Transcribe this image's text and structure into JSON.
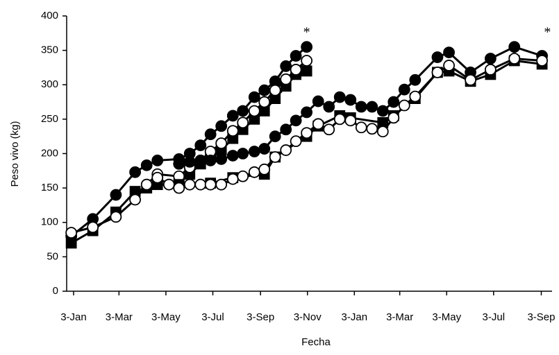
{
  "chart_data": {
    "type": "line",
    "x_label": "Fecha",
    "y_label": "Peso vivo (kg)",
    "xlim": [
      -9,
      622
    ],
    "xticks": [
      {
        "value": 0,
        "label": "3-Jan"
      },
      {
        "value": 59,
        "label": "3-Mar"
      },
      {
        "value": 120,
        "label": "3-May"
      },
      {
        "value": 181,
        "label": "3-Jul"
      },
      {
        "value": 243,
        "label": "3-Sep"
      },
      {
        "value": 304,
        "label": "3-Nov"
      },
      {
        "value": 365,
        "label": "3-Jan"
      },
      {
        "value": 424,
        "label": "3-Mar"
      },
      {
        "value": 485,
        "label": "3-May"
      },
      {
        "value": 546,
        "label": "3-Jul"
      },
      {
        "value": 608,
        "label": "3-Sep"
      }
    ],
    "ylim": [
      0,
      400
    ],
    "yticks": [
      0,
      50,
      100,
      150,
      200,
      250,
      300,
      350,
      400
    ],
    "annotations": [
      {
        "text": "*",
        "x": 303,
        "y": 375
      },
      {
        "text": "*",
        "x": 616,
        "y": 375
      }
    ],
    "series": [
      {
        "color": "#000000",
        "marker": "circle",
        "filled": true,
        "x": [
          -3,
          25,
          55,
          80,
          95,
          109,
          137,
          151,
          165,
          178,
          192,
          207,
          220,
          235,
          248,
          262,
          276,
          289,
          303
        ],
        "values": [
          80,
          105,
          140,
          173,
          183,
          190,
          192,
          200,
          212,
          228,
          240,
          255,
          262,
          282,
          292,
          305,
          327,
          342,
          355
        ]
      },
      {
        "color": "#000000",
        "marker": "square",
        "filled": true,
        "x": [
          -3,
          25,
          55,
          80,
          95,
          109,
          137,
          151,
          165,
          178,
          192,
          207,
          220,
          235,
          248,
          262,
          276,
          289,
          303
        ],
        "values": [
          70,
          88,
          115,
          145,
          150,
          160,
          158,
          170,
          185,
          195,
          205,
          222,
          235,
          250,
          262,
          280,
          298,
          315,
          320
        ]
      },
      {
        "color": "#000000",
        "marker": "circle",
        "filled": false,
        "x": [
          -3,
          25,
          55,
          80,
          95,
          109,
          137,
          151,
          165,
          178,
          192,
          207,
          220,
          235,
          248,
          262,
          276,
          289,
          303
        ],
        "values": [
          85,
          93,
          108,
          133,
          155,
          170,
          167,
          180,
          190,
          203,
          215,
          233,
          245,
          262,
          275,
          292,
          308,
          322,
          335
        ]
      },
      {
        "color": "#000000",
        "marker": "circle",
        "filled": true,
        "x": [
          137,
          151,
          165,
          178,
          192,
          207,
          220,
          235,
          248,
          262,
          276,
          289,
          303,
          318,
          332,
          346,
          360,
          374,
          388,
          402,
          416,
          430,
          444,
          473,
          488,
          516,
          542,
          573,
          609
        ],
        "values": [
          185,
          188,
          190,
          190,
          192,
          197,
          200,
          203,
          207,
          225,
          235,
          248,
          260,
          276,
          268,
          282,
          278,
          268,
          268,
          262,
          275,
          293,
          307,
          340,
          347,
          318,
          338,
          355,
          342
        ]
      },
      {
        "color": "#000000",
        "marker": "square",
        "filled": true,
        "x": [
          109,
          137,
          178,
          207,
          248,
          262,
          303,
          318,
          346,
          360,
          402,
          416,
          444,
          473,
          488,
          516,
          542,
          573,
          609
        ],
        "values": [
          155,
          155,
          157,
          165,
          170,
          195,
          225,
          240,
          255,
          252,
          245,
          255,
          280,
          318,
          320,
          305,
          315,
          335,
          330
        ]
      },
      {
        "color": "#000000",
        "marker": "circle",
        "filled": false,
        "x": [
          109,
          124,
          137,
          151,
          165,
          178,
          192,
          207,
          220,
          235,
          248,
          262,
          276,
          289,
          303,
          318,
          332,
          346,
          360,
          374,
          388,
          402,
          416,
          430,
          444,
          473,
          488,
          516,
          542,
          573,
          609
        ],
        "values": [
          165,
          155,
          150,
          155,
          155,
          155,
          155,
          163,
          167,
          173,
          177,
          195,
          205,
          218,
          230,
          243,
          235,
          250,
          248,
          238,
          236,
          232,
          252,
          270,
          283,
          318,
          328,
          307,
          322,
          338,
          335
        ]
      }
    ]
  }
}
